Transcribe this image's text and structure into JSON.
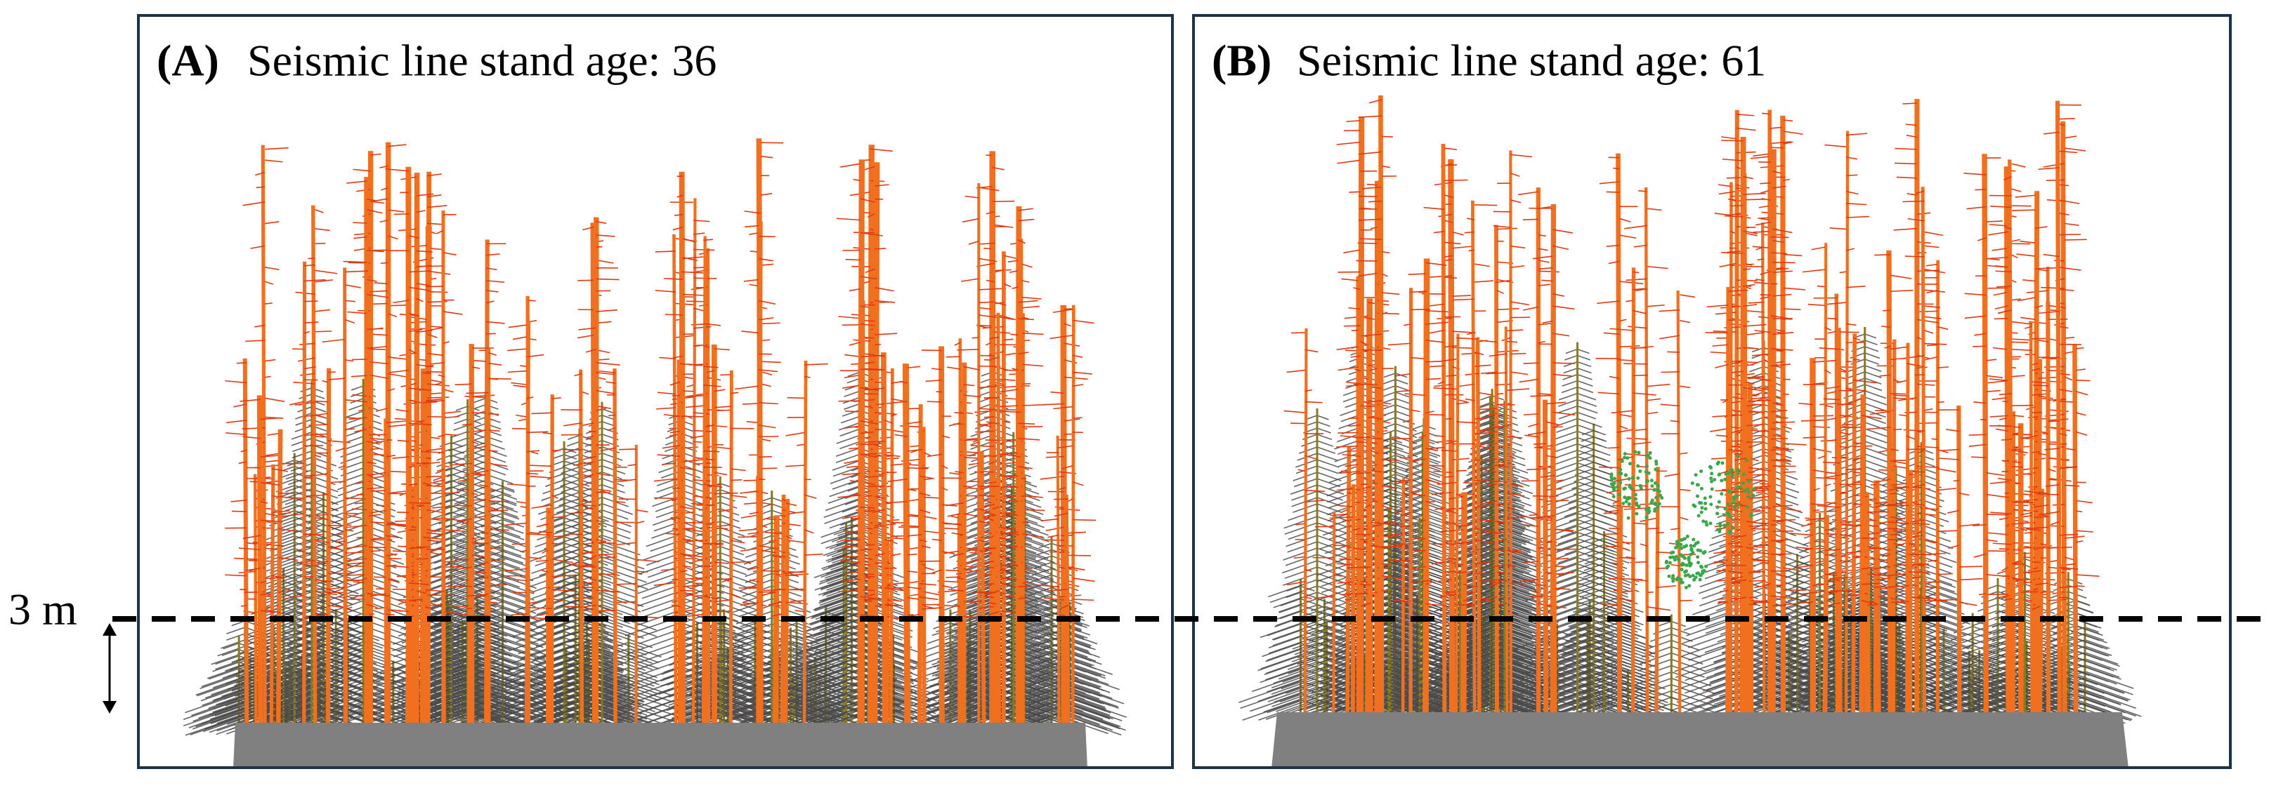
{
  "panels": [
    {
      "label": "(A)",
      "title": "Seismic line stand age: 36"
    },
    {
      "label": "(B)",
      "title": "Seismic line stand age: 61"
    }
  ],
  "marker": {
    "label": "3 m"
  }
}
